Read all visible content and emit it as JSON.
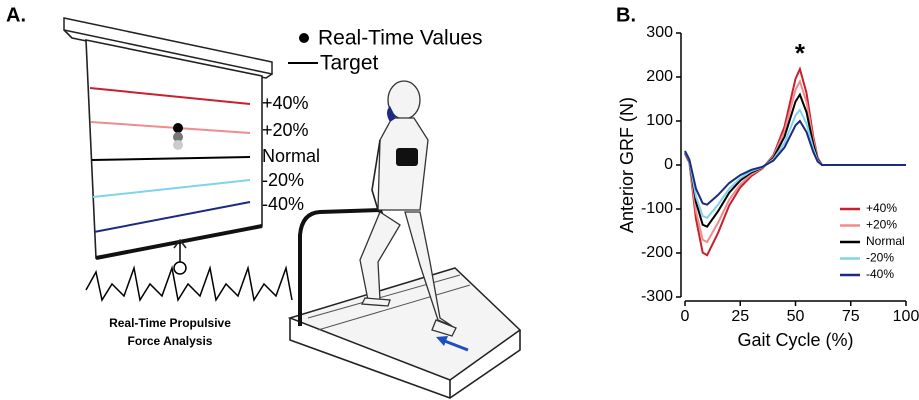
{
  "panel_a": {
    "label": "A.",
    "legend": [
      "Real-Time Values",
      "Target"
    ],
    "levels": [
      "+40%",
      "+20%",
      "Normal",
      "-20%",
      "-40%"
    ],
    "caption": [
      "Real-Time Propulsive",
      "Force Analysis"
    ]
  },
  "chart_data": {
    "type": "line",
    "panel_label": "B.",
    "xlabel": "Gait Cycle (%)",
    "ylabel": "Anterior GRF (N)",
    "annotation": "*",
    "x": [
      0,
      2,
      5,
      8,
      10,
      15,
      20,
      25,
      30,
      35,
      40,
      45,
      50,
      52,
      55,
      58,
      60,
      62,
      65,
      70,
      80,
      90,
      100
    ],
    "series": [
      {
        "name": "+40%",
        "color": "#c8202f",
        "values": [
          25,
          5,
          -123,
          -199,
          -205,
          -154,
          -92,
          -51,
          -25,
          -8,
          22,
          87,
          196,
          218,
          164,
          65,
          17,
          0,
          0,
          0,
          0,
          0,
          0
        ]
      },
      {
        "name": "+20%",
        "color": "#f08c8c",
        "values": [
          25,
          5,
          -105,
          -170,
          -175,
          -131,
          -79,
          -44,
          -21,
          -7,
          19,
          76,
          171,
          190,
          143,
          57,
          15,
          0,
          0,
          0,
          0,
          0,
          0
        ]
      },
      {
        "name": "Normal",
        "color": "#000000",
        "values": [
          28,
          8,
          -84,
          -136,
          -140,
          -105,
          -63,
          -35,
          -17,
          -6,
          16,
          64,
          144,
          160,
          120,
          48,
          13,
          0,
          0,
          0,
          0,
          0,
          0
        ]
      },
      {
        "name": "-20%",
        "color": "#7fd3ef",
        "values": [
          30,
          10,
          -72,
          -116,
          -120,
          -90,
          -54,
          -30,
          -14,
          -5,
          13,
          50,
          113,
          125,
          94,
          38,
          10,
          0,
          0,
          0,
          0,
          0,
          0
        ]
      },
      {
        "name": "-40%",
        "color": "#1c2a80",
        "values": [
          32,
          12,
          -54,
          -87,
          -90,
          -68,
          -41,
          -23,
          -11,
          -4,
          10,
          40,
          90,
          100,
          75,
          30,
          8,
          0,
          0,
          0,
          0,
          0,
          0
        ]
      }
    ],
    "xlim": [
      0,
      100
    ],
    "xticks": [
      0,
      25,
      50,
      75,
      100
    ],
    "ylim": [
      -300,
      300
    ],
    "yticks": [
      -300,
      -200,
      -100,
      0,
      100,
      200,
      300
    ],
    "legend": "lower right"
  }
}
